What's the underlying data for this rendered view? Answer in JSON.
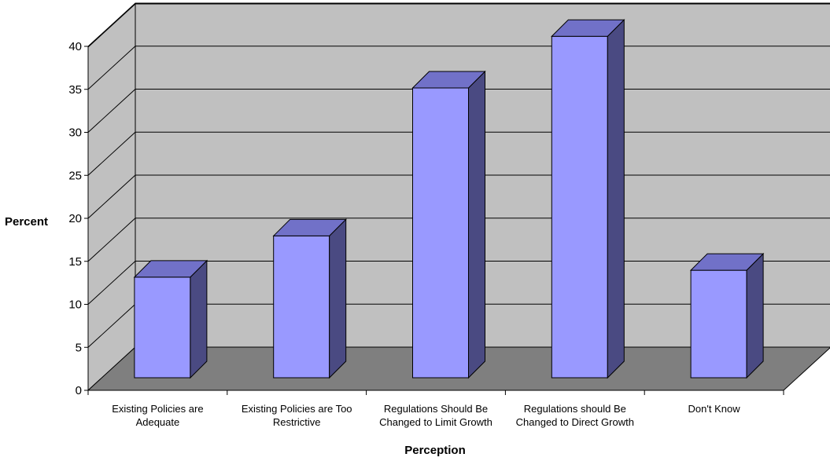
{
  "chart_data": {
    "type": "bar",
    "title": "",
    "xlabel": "Perception",
    "ylabel": "Percent",
    "ylim": [
      0,
      40
    ],
    "yticks": [
      0,
      5,
      10,
      15,
      20,
      25,
      30,
      35,
      40
    ],
    "grid": true,
    "three_d": true,
    "categories": [
      [
        "Existing Policies are",
        "Adequate"
      ],
      [
        "Existing Policies are Too",
        "Restrictive"
      ],
      [
        "Regulations Should Be",
        "Changed to Limit Growth"
      ],
      [
        "Regulations should Be",
        "Changed to Direct Growth"
      ],
      [
        "Don't Know"
      ]
    ],
    "values": [
      11.7,
      16.5,
      33.7,
      39.7,
      12.5
    ]
  },
  "colors": {
    "bar_front": "#9999ff",
    "bar_side": "#4a4a82",
    "bar_top": "#7171c8",
    "wall": "#c0c0c0",
    "floor": "#7f7f7f",
    "gridline": "#000000"
  }
}
